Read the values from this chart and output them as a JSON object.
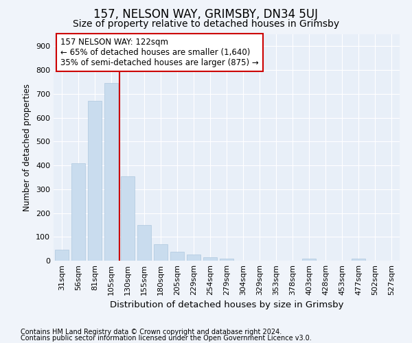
{
  "title1": "157, NELSON WAY, GRIMSBY, DN34 5UJ",
  "title2": "Size of property relative to detached houses in Grimsby",
  "xlabel": "Distribution of detached houses by size in Grimsby",
  "ylabel": "Number of detached properties",
  "categories": [
    "31sqm",
    "56sqm",
    "81sqm",
    "105sqm",
    "130sqm",
    "155sqm",
    "180sqm",
    "205sqm",
    "229sqm",
    "254sqm",
    "279sqm",
    "304sqm",
    "329sqm",
    "353sqm",
    "378sqm",
    "403sqm",
    "428sqm",
    "453sqm",
    "477sqm",
    "502sqm",
    "527sqm"
  ],
  "values": [
    47,
    410,
    670,
    745,
    355,
    150,
    68,
    36,
    27,
    15,
    8,
    0,
    0,
    0,
    0,
    8,
    0,
    0,
    8,
    0,
    0
  ],
  "bar_color": "#c9dcee",
  "bar_edge_color": "#aec8de",
  "vline_x": 3.5,
  "vline_color": "#cc0000",
  "annotation_text": "157 NELSON WAY: 122sqm\n← 65% of detached houses are smaller (1,640)\n35% of semi-detached houses are larger (875) →",
  "annotation_box_color": "#ffffff",
  "annotation_box_edge": "#cc0000",
  "ylim": [
    0,
    950
  ],
  "yticks": [
    0,
    100,
    200,
    300,
    400,
    500,
    600,
    700,
    800,
    900
  ],
  "footnote1": "Contains HM Land Registry data © Crown copyright and database right 2024.",
  "footnote2": "Contains public sector information licensed under the Open Government Licence v3.0.",
  "bg_color": "#f0f4fa",
  "plot_bg_color": "#e8eff8",
  "grid_color": "#ffffff",
  "title1_fontsize": 12,
  "title2_fontsize": 10,
  "xlabel_fontsize": 9.5,
  "ylabel_fontsize": 8.5,
  "tick_fontsize": 8,
  "annotation_fontsize": 8.5,
  "footnote_fontsize": 7
}
